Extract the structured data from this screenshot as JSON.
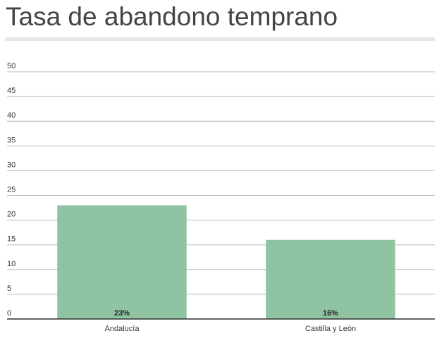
{
  "chart_data": {
    "type": "bar",
    "title": "Tasa de abandono temprano",
    "categories": [
      "Andalucía",
      "Castilla y León"
    ],
    "values": [
      23,
      16
    ],
    "value_labels": [
      "23%",
      "16%"
    ],
    "color": "#8fc3a1",
    "ylim": [
      0,
      50
    ],
    "yticks": [
      0,
      5,
      10,
      15,
      20,
      25,
      30,
      35,
      40,
      45,
      50
    ],
    "grid": true
  }
}
